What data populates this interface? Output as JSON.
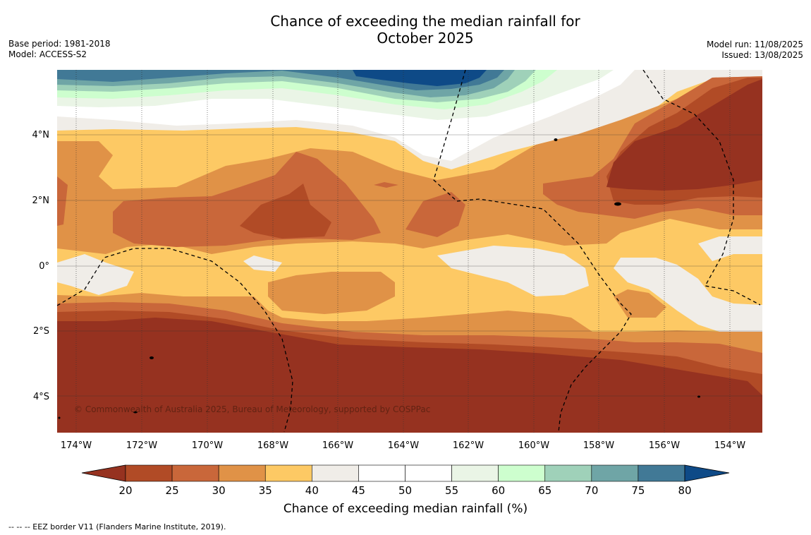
{
  "title_line1": "Chance of exceeding the median rainfall for",
  "title_line2": "October 2025",
  "base_period": "Base period: 1981-2018",
  "model": "Model: ACCESS-S2",
  "model_run": "Model run: 11/08/2025",
  "issued": "Issued: 13/08/2025",
  "copyright": "© Commonwealth of Australia 2025, Bureau of Meteorology, supported by COSPPac",
  "footnote": "--  --  -- EEZ border V11 (Flanders Marine Institute, 2019).",
  "map": {
    "lon_ticks": [
      "174°W",
      "172°W",
      "170°W",
      "168°W",
      "166°W",
      "164°W",
      "162°W",
      "160°W",
      "158°W",
      "156°W",
      "154°W"
    ],
    "lat_ticks": [
      "4°N",
      "2°N",
      "0°",
      "2°S",
      "4°S"
    ],
    "colors": {
      "c15": "#963220",
      "c20": "#b14b26",
      "c25": "#c9673a",
      "c30": "#e09247",
      "c35": "#fdc964",
      "c40": "#f0ede8",
      "c45": "#ffffff",
      "c50": "#ffffff",
      "c55": "#eaf5e6",
      "c60": "#cdfece",
      "c65": "#9fd1b9",
      "c70": "#6fa5a6",
      "c75": "#417996",
      "c80": "#0e4a87"
    }
  },
  "colorbar": {
    "title": "Chance of exceeding median rainfall (%)",
    "ticks": [
      "20",
      "25",
      "30",
      "35",
      "40",
      "45",
      "50",
      "55",
      "60",
      "65",
      "70",
      "75",
      "80"
    ],
    "low_color": "#963220",
    "high_color": "#0e4a87",
    "colors": [
      "#b14b26",
      "#c9673a",
      "#e09247",
      "#fdc964",
      "#f0ede8",
      "#ffffff",
      "#ffffff",
      "#eaf5e6",
      "#cdfece",
      "#9fd1b9",
      "#6fa5a6",
      "#417996"
    ]
  }
}
